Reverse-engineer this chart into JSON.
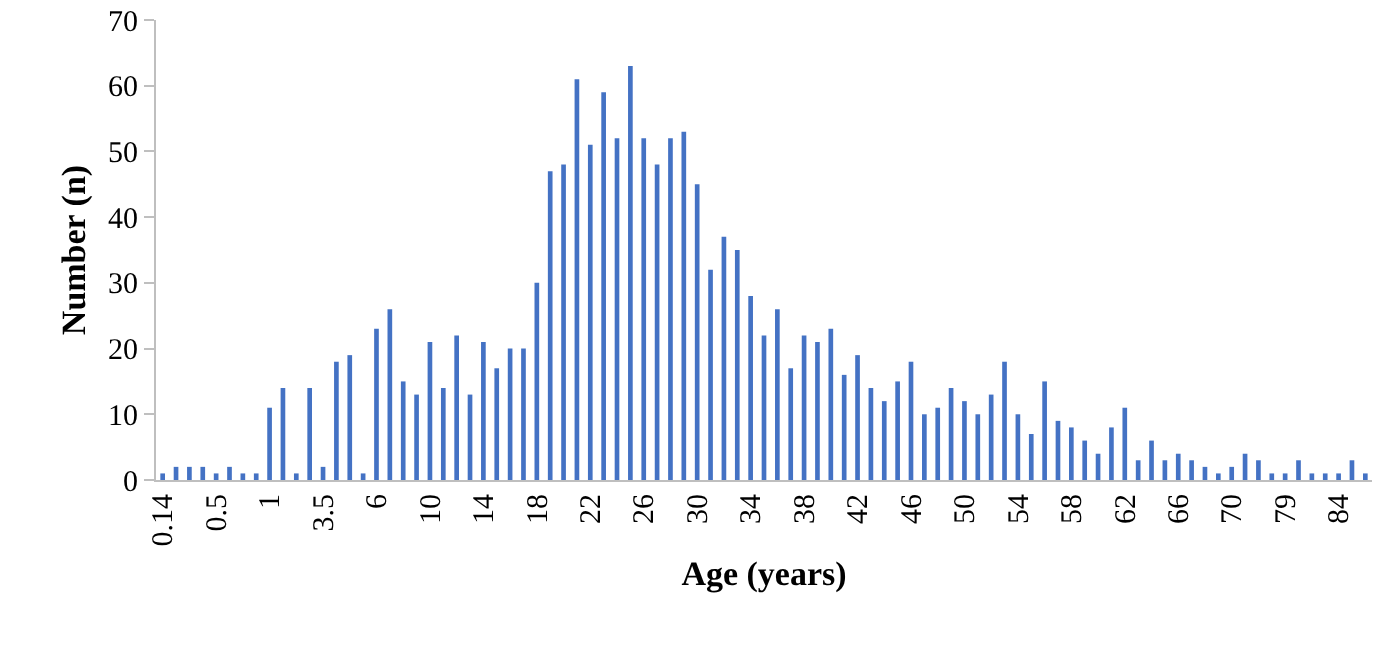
{
  "chart_data": {
    "type": "bar",
    "xlabel": "Age (years)",
    "ylabel": "Number (n)",
    "categories": [
      "0.14",
      null,
      null,
      null,
      "0.5",
      null,
      null,
      null,
      "1",
      null,
      null,
      null,
      "3.5",
      null,
      null,
      null,
      "6",
      null,
      null,
      null,
      "10",
      null,
      null,
      null,
      "14",
      null,
      null,
      null,
      "18",
      null,
      null,
      null,
      "22",
      null,
      null,
      null,
      "26",
      null,
      null,
      null,
      "30",
      null,
      null,
      null,
      "34",
      null,
      null,
      null,
      "38",
      null,
      null,
      null,
      "42",
      null,
      null,
      null,
      "46",
      null,
      null,
      null,
      "50",
      null,
      null,
      null,
      "54",
      null,
      null,
      null,
      "58",
      null,
      null,
      null,
      "62",
      null,
      null,
      null,
      "66",
      null,
      null,
      null,
      "70",
      null,
      null,
      null,
      "79",
      null,
      null,
      null,
      "84",
      null,
      null
    ],
    "values": [
      1,
      2,
      2,
      2,
      1,
      2,
      1,
      1,
      11,
      14,
      1,
      14,
      2,
      18,
      19,
      1,
      23,
      26,
      15,
      13,
      21,
      14,
      22,
      13,
      21,
      17,
      20,
      20,
      30,
      47,
      48,
      61,
      51,
      59,
      52,
      63,
      52,
      48,
      52,
      53,
      45,
      32,
      37,
      35,
      28,
      22,
      26,
      17,
      22,
      21,
      23,
      16,
      19,
      14,
      12,
      15,
      18,
      10,
      11,
      14,
      12,
      10,
      13,
      18,
      10,
      7,
      15,
      9,
      8,
      6,
      4,
      8,
      11,
      3,
      6,
      3,
      4,
      3,
      2,
      1,
      2,
      4,
      3,
      1,
      1,
      3,
      1,
      1,
      1,
      3,
      1
    ],
    "color": "#4472c4",
    "ylim": [
      0,
      70
    ],
    "yticks": [
      0,
      10,
      20,
      30,
      40,
      50,
      60,
      70
    ],
    "grid": false
  }
}
